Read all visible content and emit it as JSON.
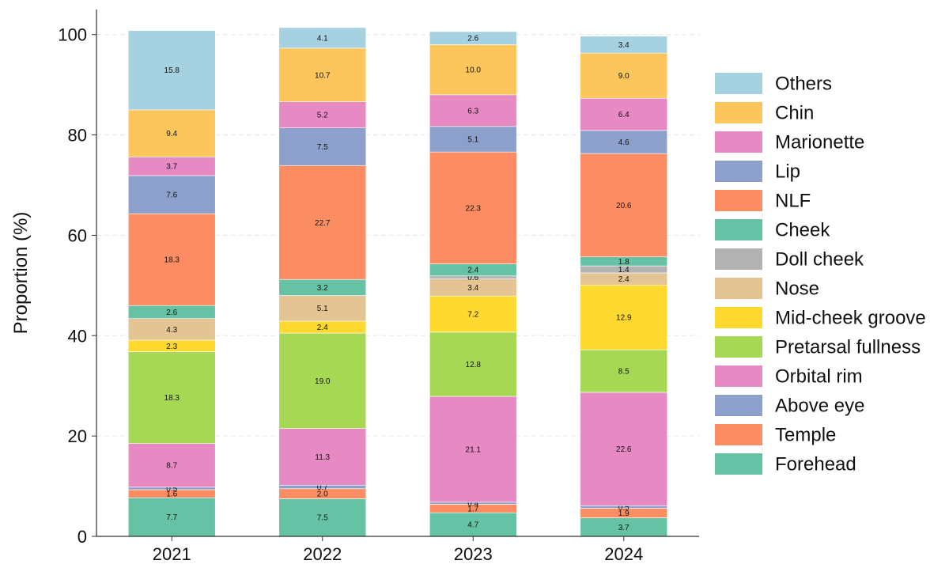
{
  "chart_data": {
    "type": "bar",
    "stacked": true,
    "categories": [
      "2021",
      "2022",
      "2023",
      "2024"
    ],
    "ylabel": "Proportion (%)",
    "xlabel": "",
    "ylim": [
      0,
      105
    ],
    "yticks": [
      0,
      20,
      40,
      60,
      80,
      100
    ],
    "grid": "horizontal dashed",
    "legend_position": "right",
    "series": [
      {
        "name": "Forehead",
        "color": "#66c2a5",
        "values": [
          7.7,
          7.5,
          4.7,
          3.7
        ]
      },
      {
        "name": "Temple",
        "color": "#fc8d62",
        "values": [
          1.6,
          2.0,
          1.7,
          1.9
        ]
      },
      {
        "name": "Above eye",
        "color": "#8da0cb",
        "values": [
          0.5,
          0.7,
          0.4,
          0.5
        ]
      },
      {
        "name": "Orbital rim",
        "color": "#e78ac3",
        "values": [
          8.7,
          11.3,
          21.1,
          22.6
        ]
      },
      {
        "name": "Pretarsal fullness",
        "color": "#a6d854",
        "values": [
          18.3,
          19.0,
          12.8,
          8.5
        ]
      },
      {
        "name": "Mid-cheek groove",
        "color": "#ffd92f",
        "values": [
          2.3,
          2.4,
          7.2,
          12.9
        ]
      },
      {
        "name": "Nose",
        "color": "#e5c494",
        "values": [
          4.3,
          5.1,
          3.4,
          2.4
        ]
      },
      {
        "name": "Doll cheek",
        "color": "#b3b3b3",
        "values": [
          0,
          0,
          0.6,
          1.4
        ]
      },
      {
        "name": "Cheek",
        "color": "#66c2a5",
        "values": [
          2.6,
          3.2,
          2.4,
          1.8
        ]
      },
      {
        "name": "NLF",
        "color": "#fc8d62",
        "values": [
          18.3,
          22.7,
          22.3,
          20.6
        ]
      },
      {
        "name": "Lip",
        "color": "#8da0cb",
        "values": [
          7.6,
          7.5,
          5.1,
          4.6
        ]
      },
      {
        "name": "Marionette",
        "color": "#e78ac3",
        "values": [
          3.7,
          5.2,
          6.3,
          6.4
        ]
      },
      {
        "name": "Chin",
        "color": "#fdc65c",
        "values": [
          9.4,
          10.7,
          10.0,
          9.0
        ]
      },
      {
        "name": "Others",
        "color": "#a6d1e0",
        "values": [
          15.8,
          4.1,
          2.6,
          3.4
        ]
      }
    ]
  }
}
